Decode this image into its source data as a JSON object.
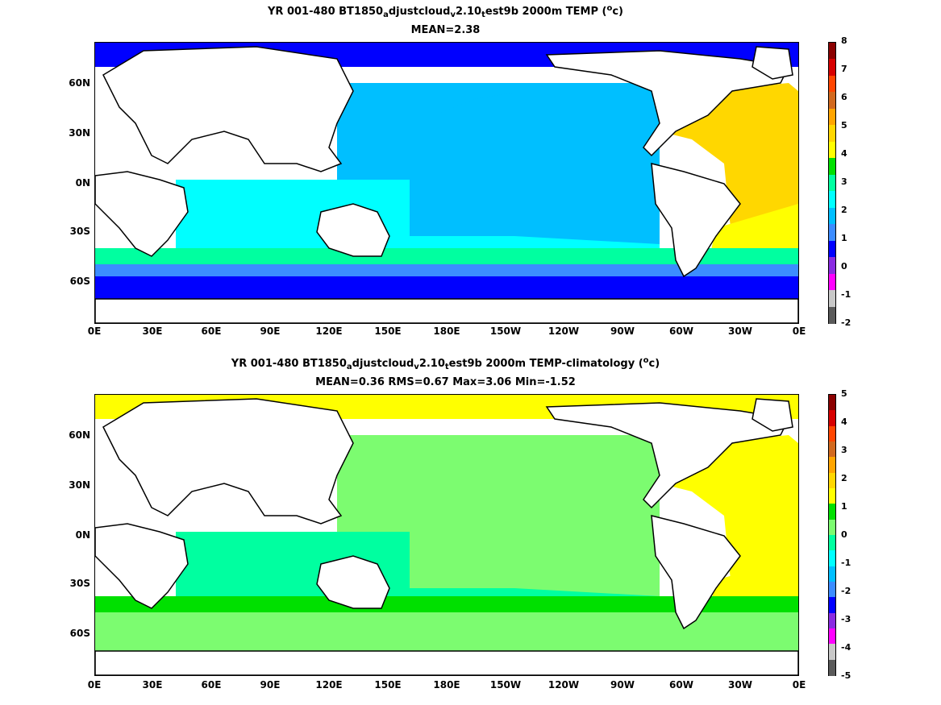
{
  "panels": [
    {
      "title_parts": [
        "YR 001-480 BT1850",
        "a",
        "djustcloud",
        "v",
        "2.10",
        "t",
        "est9b 2000m TEMP (",
        "o",
        "c)"
      ],
      "subtitle": "MEAN=2.38",
      "y_ticks": [
        "60N",
        "30N",
        "0N",
        "30S",
        "60S"
      ],
      "x_ticks": [
        "0E",
        "30E",
        "60E",
        "90E",
        "120E",
        "150E",
        "180E",
        "150W",
        "120W",
        "90W",
        "60W",
        "30W",
        "0E"
      ],
      "colorbar": {
        "levels": [
          "8",
          "7",
          "6",
          "5",
          "4",
          "3",
          "2",
          "1",
          "0",
          "-1",
          "-2"
        ],
        "colors": [
          "#8b0000",
          "#d70000",
          "#ff4500",
          "#d2691e",
          "#ffa500",
          "#ffd700",
          "#ffff00",
          "#00e000",
          "#00ffa0",
          "#00ffff",
          "#00bfff",
          "#3c8cff",
          "#0000ff",
          "#8a2be2",
          "#ff00ff",
          "#c8c8c8",
          "#5a5a5a"
        ]
      },
      "fields": {
        "pacific": "#00bfff",
        "indian": "#00ffff",
        "atlantic": "#ffd700",
        "south_atlantic": "#ffff00",
        "southern_band": "#00ffa0",
        "antarctic": "#3c8cff",
        "deep_south": "#0000ff",
        "arctic": "#0000ff"
      }
    },
    {
      "title_parts": [
        "YR 001-480 BT1850",
        "a",
        "djustcloud",
        "v",
        "2.10",
        "t",
        "est9b 2000m TEMP-climatology (",
        "o",
        "c)"
      ],
      "subtitle": "MEAN=0.36   RMS=0.67   Max=3.06   Min=-1.52",
      "y_ticks": [
        "60N",
        "30N",
        "0N",
        "30S",
        "60S"
      ],
      "x_ticks": [
        "0E",
        "30E",
        "60E",
        "90E",
        "120E",
        "150E",
        "180E",
        "150W",
        "120W",
        "90W",
        "60W",
        "30W",
        "0E"
      ],
      "colorbar": {
        "levels": [
          "5",
          "4",
          "3",
          "2",
          "1",
          "0",
          "-1",
          "-2",
          "-3",
          "-4",
          "-5"
        ],
        "colors": [
          "#8b0000",
          "#d70000",
          "#ff4500",
          "#d2691e",
          "#ffa500",
          "#ffd700",
          "#ffff00",
          "#00e000",
          "#7cfc70",
          "#00ffa0",
          "#00ffff",
          "#00bfff",
          "#3c8cff",
          "#0000ff",
          "#8a2be2",
          "#ff00ff",
          "#c8c8c8",
          "#5a5a5a"
        ]
      },
      "fields": {
        "pacific": "#7cfc70",
        "indian": "#00ffa0",
        "atlantic": "#ffff00",
        "south_atlantic": "#ffff00",
        "southern_band": "#00e000",
        "antarctic": "#7cfc70",
        "deep_south": "#7cfc70",
        "arctic": "#ffff00"
      }
    }
  ]
}
